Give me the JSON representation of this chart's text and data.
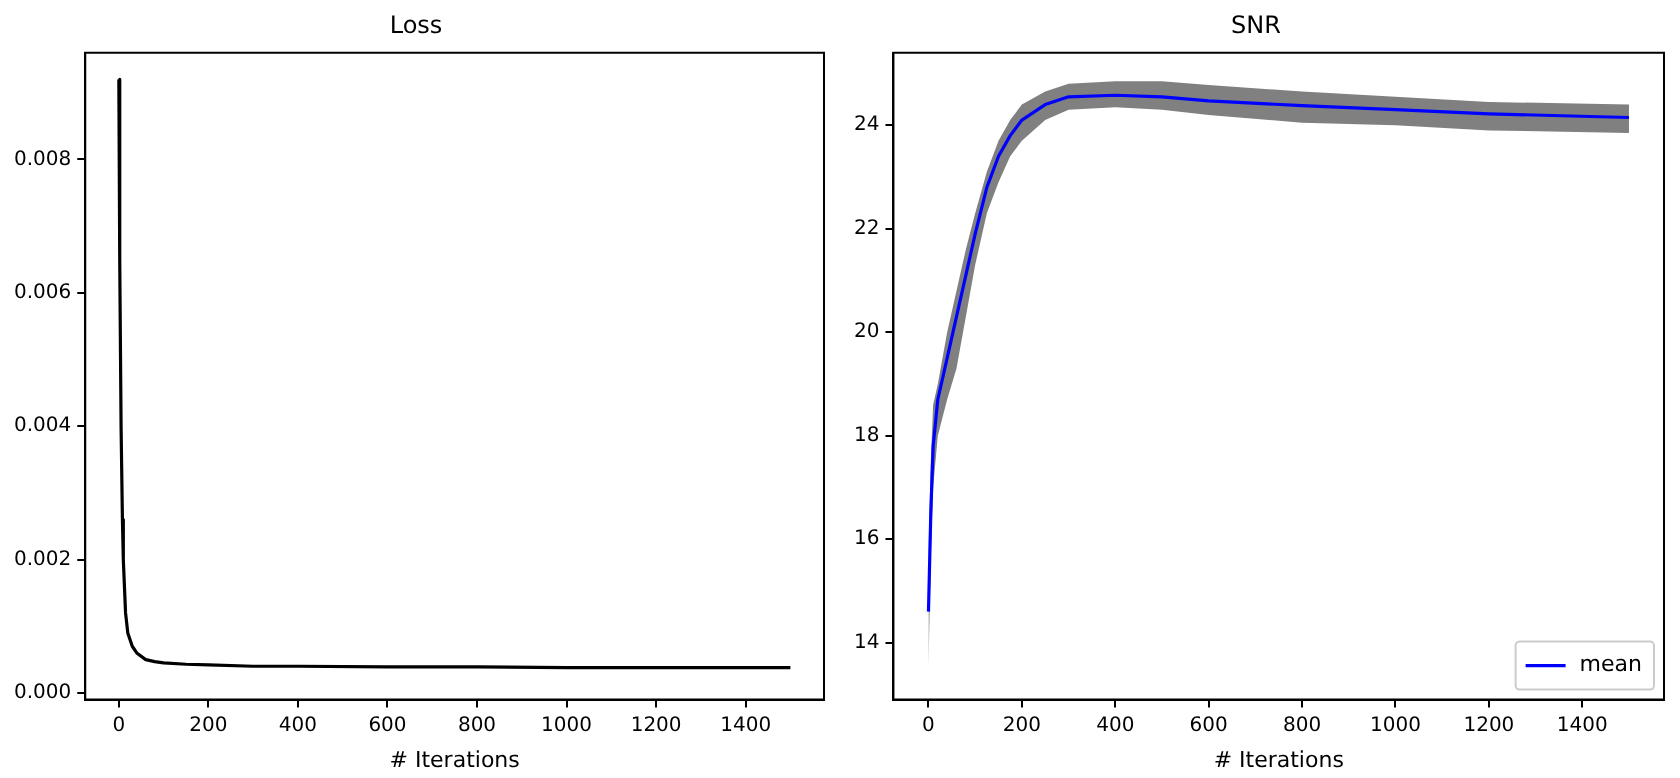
{
  "chart_data": [
    {
      "type": "line",
      "title": "Loss",
      "xlabel": "# Iterations",
      "xlim": [
        -75,
        1575
      ],
      "xticks": [
        0,
        200,
        400,
        600,
        800,
        1000,
        1200,
        1400
      ],
      "ylim": [
        -0.0001,
        0.0096
      ],
      "yticks": [
        {
          "value": 0,
          "label": "0.000"
        },
        {
          "value": 0.002,
          "label": "0.002"
        },
        {
          "value": 0.004,
          "label": "0.004"
        },
        {
          "value": 0.006,
          "label": "0.006"
        },
        {
          "value": 0.008,
          "label": "0.008"
        }
      ],
      "grid": false,
      "legend": false,
      "series": [
        {
          "color": "#000000",
          "x": [
            0,
            2,
            5,
            8,
            10,
            15,
            20,
            30,
            40,
            60,
            80,
            100,
            150,
            200,
            300,
            400,
            600,
            800,
            1000,
            1200,
            1500
          ],
          "values": [
            0.0092,
            0.0065,
            0.004,
            0.0026,
            0.002,
            0.0012,
            0.0009,
            0.0007,
            0.0006,
            0.0005,
            0.00047,
            0.00045,
            0.00043,
            0.00042,
            0.0004,
            0.0004,
            0.00039,
            0.00039,
            0.00038,
            0.00038,
            0.00038
          ]
        }
      ]
    },
    {
      "type": "line",
      "title": "SNR",
      "xlabel": "# Iterations",
      "xlim": [
        -75,
        1575
      ],
      "xticks": [
        0,
        200,
        400,
        600,
        800,
        1000,
        1200,
        1400
      ],
      "ylim": [
        12.9,
        25.4
      ],
      "yticks": [
        14,
        16,
        18,
        20,
        22,
        24
      ],
      "grid": false,
      "legend": "bottom right",
      "series": [
        {
          "name": "mean",
          "color": "#0000ff",
          "x": [
            0,
            5,
            10,
            20,
            40,
            60,
            80,
            100,
            125,
            150,
            175,
            200,
            250,
            300,
            400,
            500,
            600,
            800,
            1000,
            1200,
            1500
          ],
          "values": [
            14.6,
            16.5,
            17.8,
            18.7,
            19.5,
            20.3,
            21.1,
            21.9,
            22.8,
            23.4,
            23.8,
            24.1,
            24.4,
            24.55,
            24.58,
            24.55,
            24.47,
            24.38,
            24.3,
            24.22,
            24.15
          ],
          "lower": [
            13.5,
            15.7,
            17.0,
            18.0,
            18.7,
            19.3,
            20.3,
            21.3,
            22.3,
            22.9,
            23.4,
            23.7,
            24.1,
            24.3,
            24.35,
            24.3,
            24.2,
            24.05,
            24.0,
            23.9,
            23.85
          ],
          "upper": [
            15.8,
            17.5,
            18.6,
            19.0,
            20.0,
            20.8,
            21.6,
            22.3,
            23.1,
            23.7,
            24.1,
            24.4,
            24.65,
            24.8,
            24.85,
            24.85,
            24.78,
            24.65,
            24.55,
            24.45,
            24.4
          ]
        }
      ]
    }
  ]
}
